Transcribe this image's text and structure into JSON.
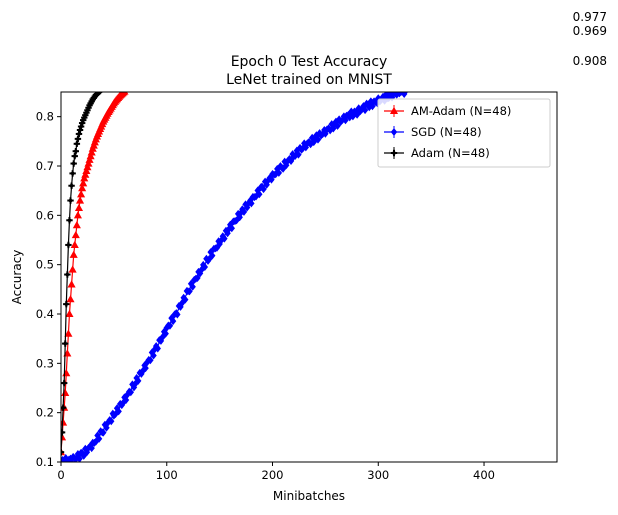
{
  "chart_data": {
    "type": "line",
    "title": "Epoch 0 Test Accuracy",
    "subtitle": "LeNet trained on MNIST",
    "xlabel": "Minibatches",
    "ylabel": "Accuracy",
    "xlim": [
      0,
      469
    ],
    "ylim": [
      0.1,
      0.85
    ],
    "xticks": [
      "0",
      "100",
      "200",
      "300",
      "400"
    ],
    "yticks": [
      "0.1",
      "0.2",
      "0.3",
      "0.4",
      "0.5",
      "0.6",
      "0.7",
      "0.8"
    ],
    "grid": false,
    "legend_position": "top-right",
    "corner_annotations": [
      "0.977",
      "0.969",
      "0.908"
    ],
    "series": [
      {
        "name": "AM-Adam (N=48)",
        "color": "#ff0000",
        "marker": "triangle",
        "x": [
          0,
          1,
          2,
          3,
          4,
          5,
          6,
          7,
          8,
          10,
          12,
          14,
          16,
          18,
          20,
          22,
          24,
          26,
          28,
          30,
          32,
          34,
          36,
          38,
          40,
          42,
          44,
          46,
          48,
          50,
          52,
          54,
          56,
          58,
          60
        ],
        "y": [
          0.12,
          0.15,
          0.18,
          0.21,
          0.24,
          0.28,
          0.32,
          0.36,
          0.4,
          0.46,
          0.52,
          0.56,
          0.6,
          0.63,
          0.655,
          0.675,
          0.69,
          0.705,
          0.72,
          0.735,
          0.748,
          0.76,
          0.77,
          0.78,
          0.79,
          0.798,
          0.806,
          0.813,
          0.82,
          0.827,
          0.833,
          0.838,
          0.843,
          0.847,
          0.851
        ]
      },
      {
        "name": "SGD (N=48)",
        "color": "#0000ff",
        "marker": "diamond",
        "x": [
          0,
          10,
          20,
          30,
          40,
          50,
          60,
          70,
          80,
          90,
          100,
          110,
          120,
          130,
          140,
          150,
          160,
          170,
          180,
          190,
          200,
          210,
          220,
          230,
          240,
          250,
          260,
          270,
          280,
          290,
          300,
          310,
          320,
          325
        ],
        "y": [
          0.1,
          0.105,
          0.115,
          0.135,
          0.165,
          0.195,
          0.225,
          0.26,
          0.295,
          0.33,
          0.37,
          0.405,
          0.445,
          0.48,
          0.515,
          0.545,
          0.575,
          0.605,
          0.63,
          0.655,
          0.68,
          0.7,
          0.72,
          0.74,
          0.755,
          0.77,
          0.785,
          0.8,
          0.81,
          0.822,
          0.832,
          0.842,
          0.85,
          0.852
        ]
      },
      {
        "name": "Adam (N=48)",
        "color": "#000000",
        "marker": "plus",
        "x": [
          0,
          1,
          2,
          3,
          4,
          5,
          6,
          7,
          8,
          9,
          10,
          11,
          12,
          13,
          14,
          15,
          16,
          17,
          18,
          19,
          20,
          21,
          22,
          23,
          24,
          25,
          26,
          27,
          28,
          29,
          30,
          31,
          32,
          33,
          34,
          35,
          36,
          37
        ],
        "y": [
          0.12,
          0.16,
          0.21,
          0.26,
          0.34,
          0.42,
          0.48,
          0.54,
          0.59,
          0.63,
          0.66,
          0.685,
          0.705,
          0.72,
          0.73,
          0.745,
          0.755,
          0.765,
          0.773,
          0.78,
          0.787,
          0.793,
          0.798,
          0.803,
          0.808,
          0.813,
          0.818,
          0.823,
          0.827,
          0.831,
          0.835,
          0.838,
          0.841,
          0.844,
          0.846,
          0.848,
          0.85,
          0.852
        ]
      }
    ]
  }
}
